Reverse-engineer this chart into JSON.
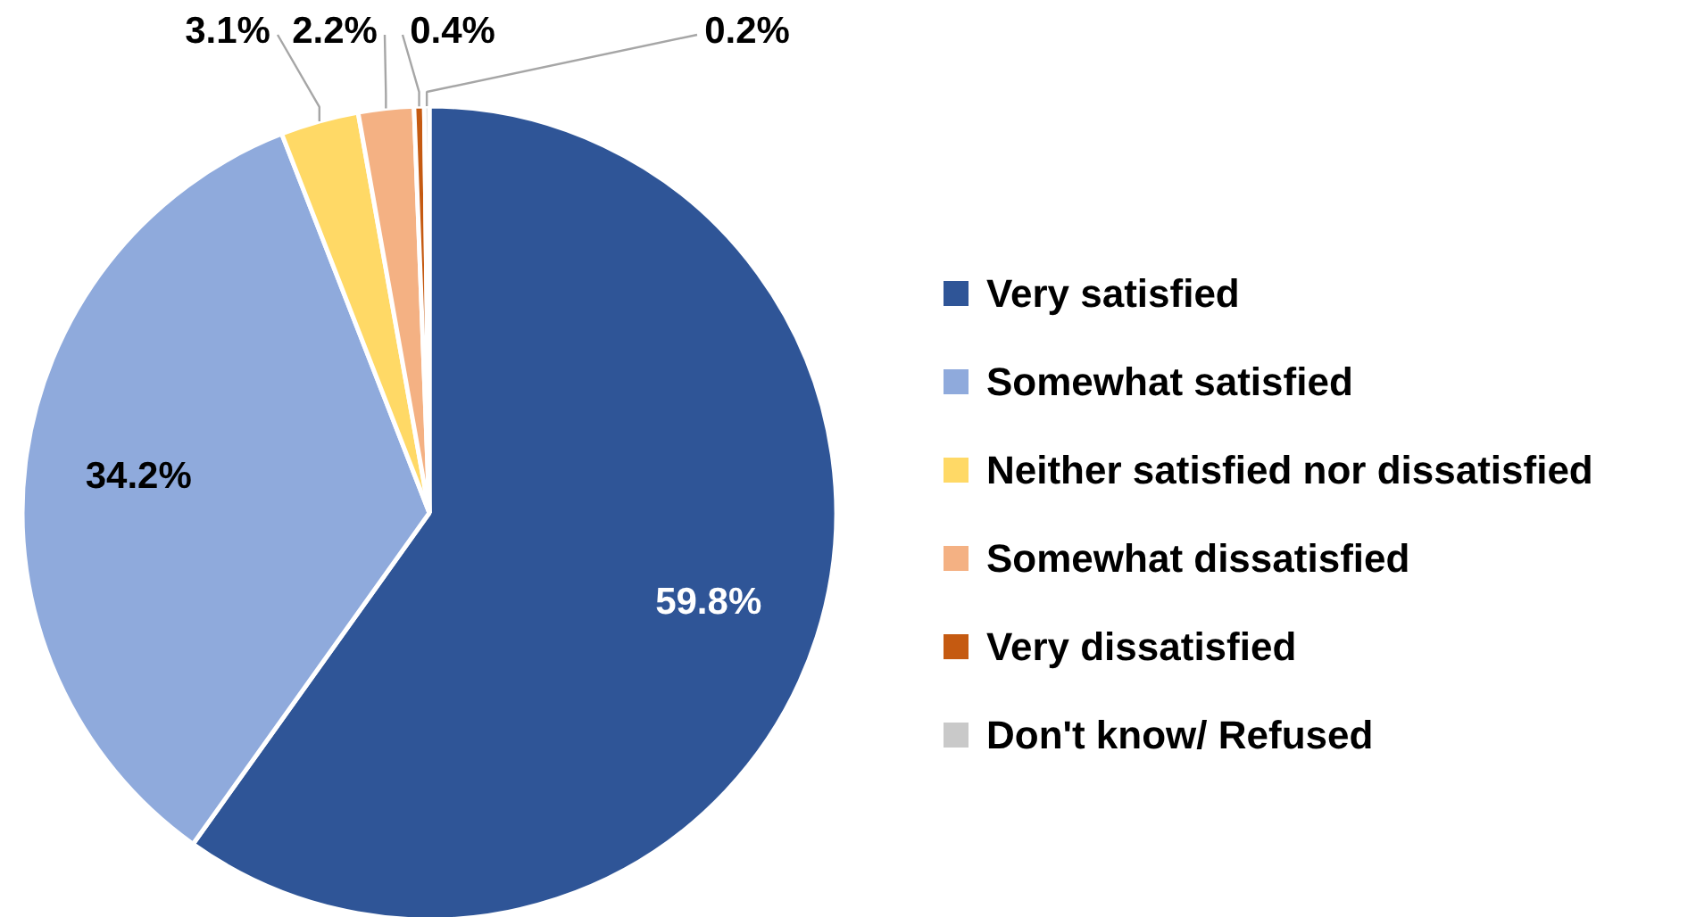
{
  "chart_data": {
    "type": "pie",
    "categories": [
      "Very satisfied",
      "Somewhat satisfied",
      "Neither satisfied nor dissatisfied",
      "Somewhat dissatisfied",
      "Very dissatisfied",
      "Don't know/ Refused"
    ],
    "values": [
      59.8,
      34.2,
      3.1,
      2.2,
      0.4,
      0.2
    ],
    "colors": [
      "#2f5597",
      "#8faadc",
      "#ffd966",
      "#f4b183",
      "#c55a11",
      "#c9c9c9"
    ],
    "value_labels": [
      "59.8%",
      "34.2%",
      "3.1%",
      "2.2%",
      "0.4%",
      "0.2%"
    ],
    "legend": "right"
  }
}
